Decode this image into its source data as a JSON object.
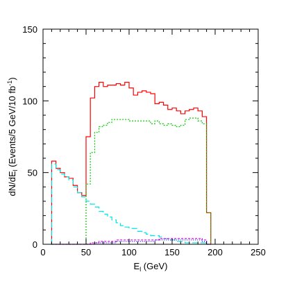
{
  "chart_data": {
    "type": "line",
    "step": true,
    "xlabel": "E",
    "xlabel_sub": "l",
    "xlabel_unit": " (GeV)",
    "ylabel": "dN/dE",
    "ylabel_sub": "l",
    "ylabel_rest": " (Events/5 GeV/10 fb",
    "ylabel_sup": "-1",
    "ylabel_close": ")",
    "xlim": [
      0,
      250
    ],
    "ylim": [
      0,
      150
    ],
    "xticks": [
      0,
      50,
      100,
      150,
      200,
      250
    ],
    "yticks": [
      0,
      50,
      100,
      150
    ],
    "xtick_labels": [
      "0",
      "50",
      "100",
      "150",
      "200",
      "250"
    ],
    "ytick_labels": [
      "0",
      "50",
      "100",
      "150"
    ],
    "grid": false,
    "bin_width": 5,
    "series": [
      {
        "color": "#ff0000",
        "dash": "",
        "x": [
          10,
          15,
          20,
          25,
          30,
          35,
          40,
          45,
          50,
          55,
          60,
          65,
          70,
          75,
          80,
          85,
          90,
          95,
          100,
          105,
          110,
          115,
          120,
          125,
          130,
          135,
          140,
          145,
          150,
          155,
          160,
          165,
          170,
          175,
          180,
          185,
          190
        ],
        "values": [
          58,
          53,
          50,
          47,
          46,
          41,
          36,
          34,
          75,
          102,
          110,
          113,
          110,
          111,
          111,
          112,
          111,
          113,
          109,
          104,
          106,
          107,
          106,
          105,
          98,
          99,
          97,
          94,
          95,
          93,
          91,
          93,
          94,
          95,
          93,
          89,
          22
        ]
      },
      {
        "color": "#00cc00",
        "dash": "2,2",
        "x": [
          50,
          55,
          60,
          65,
          70,
          75,
          80,
          85,
          90,
          95,
          100,
          105,
          110,
          115,
          120,
          125,
          130,
          135,
          140,
          145,
          150,
          155,
          160,
          165,
          170,
          175,
          180,
          185,
          190
        ],
        "values": [
          42,
          64,
          78,
          82,
          83,
          85,
          87,
          87,
          87,
          87,
          86,
          86,
          86,
          86,
          86,
          84,
          86,
          84,
          83,
          84,
          83,
          82,
          83,
          87,
          88,
          88,
          86,
          84,
          22
        ]
      },
      {
        "color": "#00e5e5",
        "dash": "8,4",
        "x": [
          10,
          15,
          20,
          25,
          30,
          35,
          40,
          45,
          50,
          55,
          60,
          65,
          70,
          75,
          80,
          85,
          90,
          95,
          100,
          105,
          110,
          115,
          120,
          125,
          130,
          135,
          140,
          145,
          150,
          155,
          160,
          165,
          170,
          175,
          180,
          185,
          190
        ],
        "values": [
          56,
          52,
          49,
          47,
          45,
          40,
          36,
          33,
          30,
          28,
          26,
          23,
          21,
          19,
          17,
          15,
          13,
          12,
          11,
          11,
          9,
          8,
          7,
          6,
          6,
          5,
          4,
          3,
          3,
          2,
          2,
          1,
          1,
          1,
          1,
          1,
          0
        ]
      },
      {
        "color": "#ee00ee",
        "dash": "3,2",
        "x": [
          10,
          50,
          55,
          60,
          65,
          70,
          75,
          80,
          85,
          90,
          95,
          100,
          105,
          110,
          115,
          120,
          125,
          130,
          135,
          140,
          145,
          150,
          155,
          160,
          165,
          170,
          175,
          180,
          185,
          190
        ],
        "values": [
          0,
          0,
          1,
          1,
          2,
          2,
          2,
          2,
          3,
          3,
          3,
          3,
          3,
          3,
          3,
          3,
          3,
          3,
          4,
          4,
          4,
          4,
          4,
          4,
          4,
          4,
          4,
          4,
          3,
          0
        ]
      },
      {
        "color": "#0000ff",
        "dash": "1,2",
        "x": [
          10,
          50,
          55,
          60,
          65,
          70,
          75,
          80,
          85,
          90,
          95,
          100,
          105,
          110,
          115,
          120,
          125,
          130,
          135,
          140,
          145,
          150,
          155,
          160,
          165,
          170,
          175,
          180,
          185,
          190
        ],
        "values": [
          0,
          0,
          0,
          1,
          1,
          1,
          1,
          1,
          2,
          2,
          2,
          2,
          2,
          2,
          2,
          2,
          2,
          3,
          3,
          3,
          3,
          3,
          3,
          3,
          3,
          3,
          3,
          3,
          2,
          0
        ]
      }
    ]
  }
}
